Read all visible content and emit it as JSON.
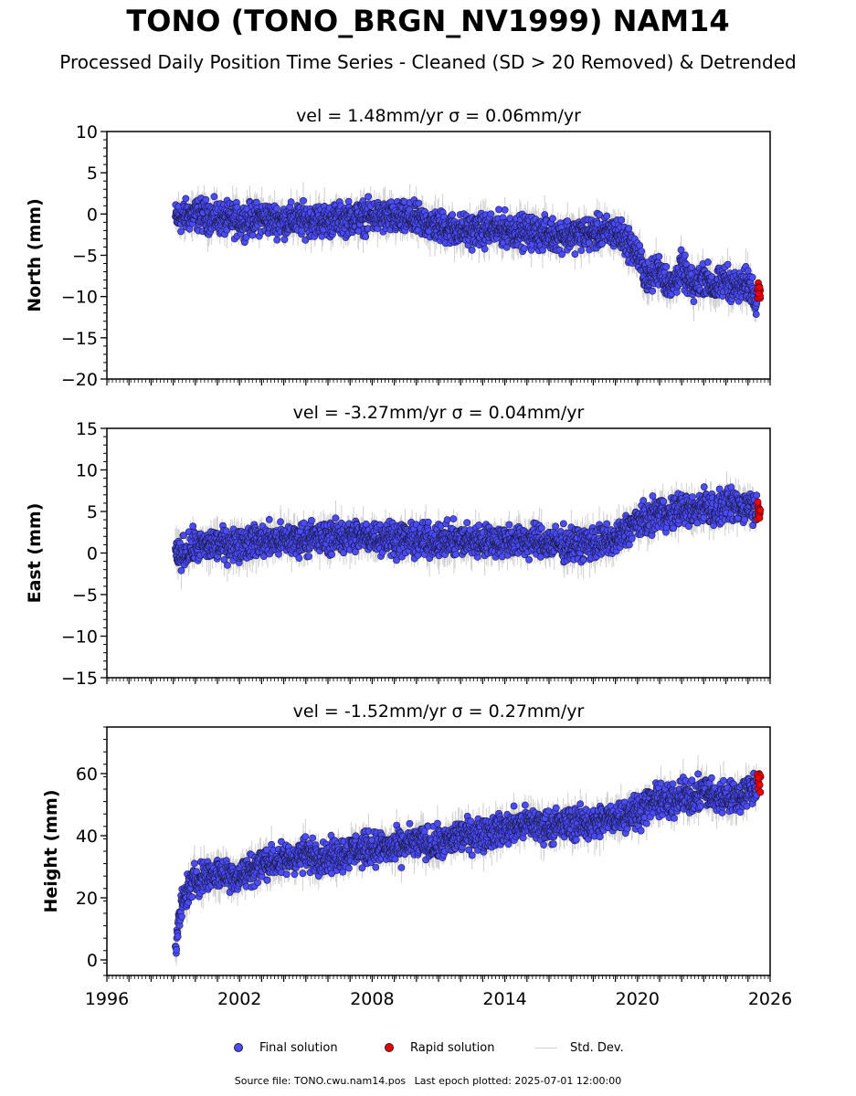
{
  "title": "TONO (TONO_BRGN_NV1999) NAM14",
  "subtitle": "Processed Daily Position Time Series - Cleaned (SD > 20 Removed) & Detrended",
  "colors": {
    "final": "#4b4bff",
    "rapid": "#ee0000",
    "std": "#cfcfcf",
    "axis": "#000000"
  },
  "legend": {
    "final": "Final solution",
    "rapid": "Rapid solution",
    "std": "Std. Dev."
  },
  "source": {
    "file": "Source file: TONO.cwu.nam14.pos",
    "last_epoch": "Last epoch plotted: 2025-07-01 12:00:00"
  },
  "chart_data": [
    {
      "type": "scatter",
      "title": "vel = 1.48mm/yr   σ = 0.06mm/yr",
      "ylabel": "North (mm)",
      "xlim": [
        1996,
        2026
      ],
      "ylim": [
        -20,
        10
      ],
      "yticks": [
        -20,
        -15,
        -10,
        -5,
        0,
        5,
        10
      ],
      "show_xtick_labels": false,
      "series": [
        {
          "name": "Final solution",
          "x": [
            1999.1,
            2000.0,
            2001.0,
            2002.0,
            2003.0,
            2004.0,
            2005.0,
            2006.0,
            2007.0,
            2008.0,
            2009.0,
            2010.0,
            2011.0,
            2012.0,
            2013.0,
            2014.0,
            2015.0,
            2016.0,
            2017.0,
            2018.0,
            2019.0,
            2019.6,
            2020.0,
            2020.5,
            2021.0,
            2021.5,
            2022.0,
            2022.5,
            2023.0,
            2023.5,
            2024.0,
            2024.5,
            2025.0,
            2025.4
          ],
          "y": [
            -0.5,
            0.0,
            -0.5,
            -0.8,
            -0.5,
            -0.8,
            -0.7,
            -0.8,
            -0.5,
            -0.3,
            -0.5,
            -0.7,
            -1.5,
            -2.0,
            -2.0,
            -1.8,
            -2.2,
            -2.5,
            -2.5,
            -2.3,
            -2.2,
            -3.5,
            -5.0,
            -8.0,
            -6.5,
            -9.0,
            -6.5,
            -9.0,
            -7.5,
            -9.0,
            -8.0,
            -9.0,
            -8.5,
            -10.0
          ]
        },
        {
          "name": "Rapid solution",
          "x": [
            2025.5
          ],
          "y": [
            -9.5
          ]
        }
      ]
    },
    {
      "type": "scatter",
      "title": "vel = -3.27mm/yr   σ = 0.04mm/yr",
      "ylabel": "East (mm)",
      "xlim": [
        1996,
        2026
      ],
      "ylim": [
        -15,
        15
      ],
      "yticks": [
        -15,
        -10,
        -5,
        0,
        5,
        10,
        15
      ],
      "show_xtick_labels": false,
      "series": [
        {
          "name": "Final solution",
          "x": [
            1999.1,
            2000.0,
            2001.0,
            2002.0,
            2003.0,
            2004.0,
            2005.0,
            2006.0,
            2007.0,
            2008.0,
            2009.0,
            2010.0,
            2011.0,
            2012.0,
            2013.0,
            2014.0,
            2015.0,
            2016.0,
            2017.0,
            2018.0,
            2019.0,
            2019.6,
            2020.0,
            2020.5,
            2021.0,
            2021.5,
            2022.0,
            2022.5,
            2023.0,
            2023.5,
            2024.0,
            2024.5,
            2025.0,
            2025.4
          ],
          "y": [
            -0.5,
            0.8,
            1.0,
            1.2,
            1.5,
            1.5,
            1.8,
            1.8,
            2.0,
            2.0,
            1.8,
            1.5,
            1.5,
            1.5,
            1.5,
            1.5,
            1.5,
            1.2,
            1.0,
            1.2,
            1.5,
            3.0,
            3.8,
            4.0,
            5.0,
            4.5,
            5.5,
            4.8,
            6.0,
            5.0,
            5.8,
            5.5,
            5.8,
            5.5
          ]
        },
        {
          "name": "Rapid solution",
          "x": [
            2025.5
          ],
          "y": [
            5.2
          ]
        }
      ]
    },
    {
      "type": "scatter",
      "title": "vel = -1.52mm/yr   σ = 0.27mm/yr",
      "ylabel": "Height (mm)",
      "xlim": [
        1996,
        2026
      ],
      "ylim": [
        -5,
        75
      ],
      "yticks": [
        0,
        20,
        40,
        60
      ],
      "show_xtick_labels": true,
      "xticks": [
        1996,
        2002,
        2008,
        2014,
        2020,
        2026
      ],
      "series": [
        {
          "name": "Final solution",
          "x": [
            1999.1,
            1999.3,
            1999.6,
            2000.0,
            2001.0,
            2002.0,
            2003.0,
            2004.0,
            2005.0,
            2006.0,
            2007.0,
            2008.0,
            2009.0,
            2010.0,
            2011.0,
            2012.0,
            2013.0,
            2014.0,
            2015.0,
            2016.0,
            2017.0,
            2018.0,
            2019.0,
            2020.0,
            2020.5,
            2021.0,
            2021.5,
            2022.0,
            2022.5,
            2023.0,
            2023.5,
            2024.0,
            2024.5,
            2025.0,
            2025.4
          ],
          "y": [
            2,
            15,
            22,
            26,
            28,
            27,
            31,
            32,
            34,
            33,
            35,
            36,
            36,
            38,
            37,
            40,
            41,
            42,
            44,
            43,
            44,
            44,
            46,
            48,
            50,
            52,
            50,
            54,
            51,
            55,
            52,
            53,
            52,
            55,
            55
          ]
        },
        {
          "name": "Rapid solution",
          "x": [
            2025.5
          ],
          "y": [
            57
          ]
        }
      ]
    }
  ]
}
